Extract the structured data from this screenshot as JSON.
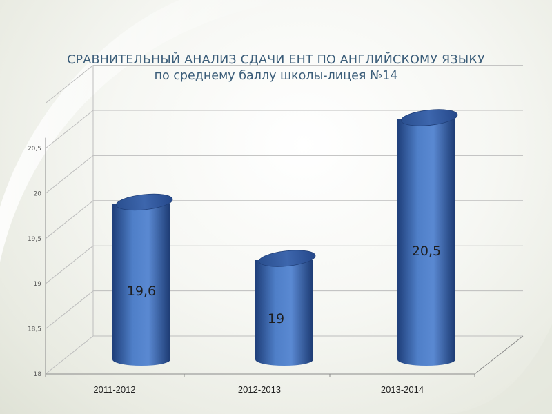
{
  "header": {
    "title": "СРАВНИТЕЛЬНЫЙ АНАЛИЗ СДАЧИ ЕНТ ПО АНГЛИЙСКОМУ ЯЗЫКУ",
    "subtitle": "по среднему баллу школы-лицея №14"
  },
  "chart_data": {
    "type": "bar",
    "style": "3d-cylinder",
    "title": "СРАВНИТЕЛЬНЫЙ АНАЛИЗ СДАЧИ ЕНТ ПО АНГЛИЙСКОМУ ЯЗЫКУ",
    "subtitle": "по среднему баллу школы-лицея №14",
    "categories": [
      "2011-2012",
      "2012-2013",
      "2013-2014"
    ],
    "values": [
      19.6,
      19,
      20.5
    ],
    "data_labels": [
      "19,6",
      "19",
      "20,5"
    ],
    "y_ticks": [
      "18",
      "18,5",
      "19",
      "19,5",
      "20",
      "20,5"
    ],
    "ylim": [
      18,
      20.5
    ],
    "grid": true,
    "legend": false,
    "bar_color": "#4a78c0",
    "xlabel": "",
    "ylabel": ""
  },
  "colors": {
    "title": "#3b5d79",
    "bar": "#4a78c0",
    "bar_dark": "#1f3f7a",
    "bar_light": "#7aa3de",
    "grid": "#bdbdbd"
  }
}
